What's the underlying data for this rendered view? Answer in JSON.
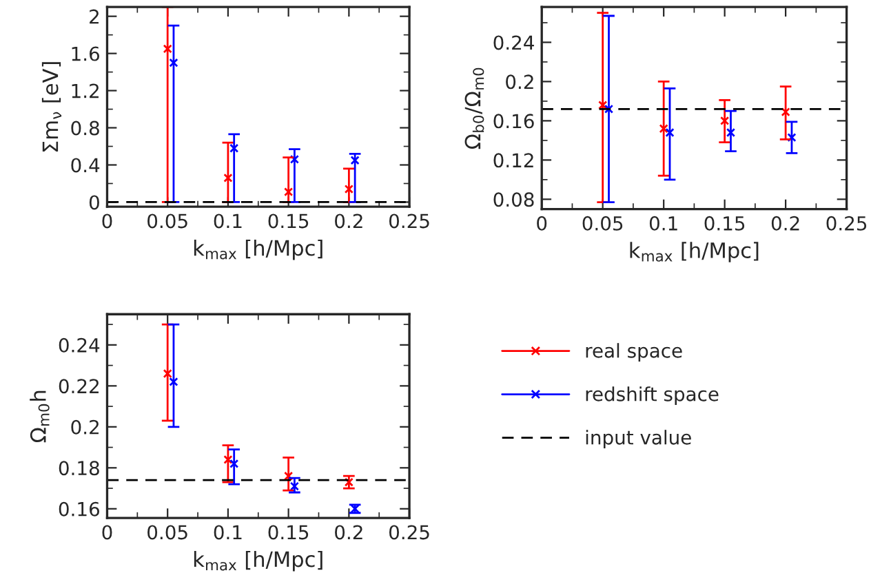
{
  "chart_data": [
    {
      "type": "scatter",
      "xlabel": "k$_{max}$ [h/Mpc]",
      "ylabel": "Σm$_{ν}$ [eV]",
      "xlim": [
        0,
        0.25
      ],
      "xticks": [
        0,
        0.05,
        0.1,
        0.15,
        0.2,
        0.25
      ],
      "ylim": [
        -0.05,
        2.1
      ],
      "yticks": [
        0,
        0.4,
        0.8,
        1.2,
        1.6,
        2
      ],
      "marker": "cross",
      "grid": false,
      "legend": false,
      "series": [
        {
          "color": "#ff0000",
          "x": [
            0.05,
            0.1,
            0.15,
            0.2
          ],
          "values": [
            1.65,
            0.26,
            0.11,
            0.14
          ],
          "errors": [
            [
              0,
              2.1
            ],
            [
              0,
              0.64
            ],
            [
              0,
              0.48
            ],
            [
              0,
              0.36
            ]
          ]
        },
        {
          "color": "#0000ff",
          "x": [
            0.055,
            0.105,
            0.155,
            0.205
          ],
          "values": [
            1.5,
            0.58,
            0.46,
            0.45
          ],
          "errors": [
            [
              0,
              1.9
            ],
            [
              0,
              0.73
            ],
            [
              0,
              0.57
            ],
            [
              0,
              0.52
            ]
          ]
        }
      ],
      "ref_lines": [
        {
          "axis": "y",
          "value": 0,
          "color": "#000000",
          "line_style": "dashed"
        }
      ]
    },
    {
      "type": "scatter",
      "xlabel": "k$_{max}$ [h/Mpc]",
      "ylabel": "Ω$_{b0}$/Ω$_{m0}$",
      "xlim": [
        0,
        0.25
      ],
      "xticks": [
        0,
        0.05,
        0.1,
        0.15,
        0.2,
        0.25
      ],
      "ylim": [
        0.07,
        0.276
      ],
      "yticks": [
        0.08,
        0.12,
        0.16,
        0.2,
        0.24
      ],
      "marker": "cross",
      "grid": false,
      "legend": false,
      "series": [
        {
          "color": "#ff0000",
          "x": [
            0.05,
            0.1,
            0.15,
            0.2
          ],
          "values": [
            0.176,
            0.152,
            0.16,
            0.169
          ],
          "errors": [
            [
              0.077,
              0.27
            ],
            [
              0.104,
              0.2
            ],
            [
              0.138,
              0.181
            ],
            [
              0.141,
              0.195
            ]
          ]
        },
        {
          "color": "#0000ff",
          "x": [
            0.055,
            0.105,
            0.155,
            0.205
          ],
          "values": [
            0.172,
            0.148,
            0.148,
            0.143
          ],
          "errors": [
            [
              0.077,
              0.267
            ],
            [
              0.1,
              0.193
            ],
            [
              0.129,
              0.17
            ],
            [
              0.127,
              0.159
            ]
          ]
        }
      ],
      "ref_lines": [
        {
          "axis": "y",
          "value": 0.172,
          "color": "#000000",
          "line_style": "dashed"
        }
      ]
    },
    {
      "type": "scatter",
      "xlabel": "k$_{max}$ [h/Mpc]",
      "ylabel": "Ω$_{m0}$h",
      "xlim": [
        0,
        0.25
      ],
      "xticks": [
        0,
        0.05,
        0.1,
        0.15,
        0.2,
        0.25
      ],
      "ylim": [
        0.1555,
        0.255
      ],
      "yticks": [
        0.16,
        0.18,
        0.2,
        0.22,
        0.24
      ],
      "marker": "cross",
      "grid": false,
      "legend": "right",
      "series": [
        {
          "name": "real space",
          "color": "#ff0000",
          "x": [
            0.05,
            0.1,
            0.15,
            0.2
          ],
          "values": [
            0.226,
            0.184,
            0.176,
            0.173
          ],
          "errors": [
            [
              0.203,
              0.25
            ],
            [
              0.173,
              0.191
            ],
            [
              0.169,
              0.185
            ],
            [
              0.17,
              0.176
            ]
          ]
        },
        {
          "name": "redshift space",
          "color": "#0000ff",
          "x": [
            0.055,
            0.105,
            0.155,
            0.205
          ],
          "values": [
            0.222,
            0.182,
            0.171,
            0.16
          ],
          "errors": [
            [
              0.2,
              0.25
            ],
            [
              0.172,
              0.189
            ],
            [
              0.168,
              0.175
            ],
            [
              0.158,
              0.162
            ]
          ]
        }
      ],
      "ref_lines": [
        {
          "axis": "y",
          "value": 0.174,
          "label": "input value",
          "color": "#000000",
          "line_style": "dashed"
        }
      ]
    }
  ]
}
